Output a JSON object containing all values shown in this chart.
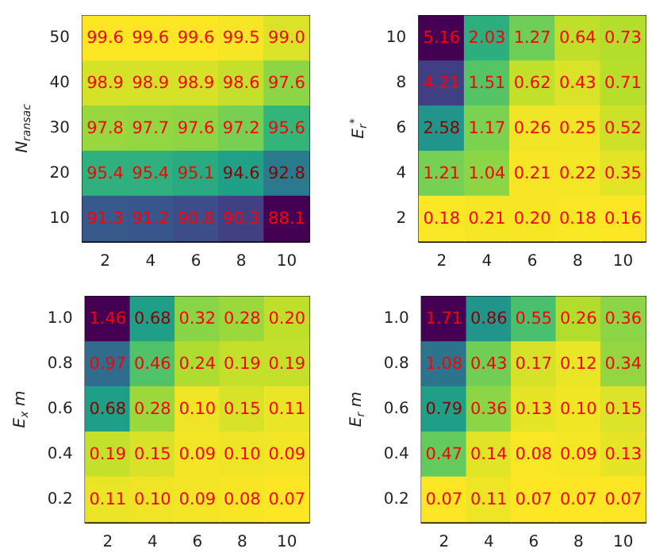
{
  "chart_data": [
    {
      "type": "heatmap",
      "ylabel": "N$_{ransac}$",
      "categories": [
        "2",
        "4",
        "6",
        "8",
        "10"
      ],
      "y_categories": [
        "50",
        "40",
        "30",
        "20",
        "10"
      ],
      "cells": [
        [
          99.6,
          99.6,
          99.6,
          99.5,
          99.0
        ],
        [
          98.9,
          98.9,
          98.9,
          98.6,
          97.6
        ],
        [
          97.8,
          97.7,
          97.6,
          97.2,
          95.6
        ],
        [
          95.4,
          95.4,
          95.1,
          94.6,
          92.8
        ],
        [
          91.3,
          91.2,
          90.8,
          90.3,
          88.1
        ]
      ],
      "cell_labels": [
        [
          "99.6",
          "99.6",
          "99.6",
          "99.5",
          "99.0"
        ],
        [
          "98.9",
          "98.9",
          "98.9",
          "98.6",
          "97.6"
        ],
        [
          "97.8",
          "97.7",
          "97.6",
          "97.2",
          "95.6"
        ],
        [
          "95.4",
          "95.4",
          "95.1",
          "94.6",
          "92.8"
        ],
        [
          "91.3",
          "91.2",
          "90.8",
          "90.3",
          "88.1"
        ]
      ]
    },
    {
      "type": "heatmap",
      "ylabel": "E$_{r}$$^{*}$",
      "categories": [
        "2",
        "4",
        "6",
        "8",
        "10"
      ],
      "y_categories": [
        "10",
        "8",
        "6",
        "4",
        "2"
      ],
      "cells": [
        [
          5.16,
          2.03,
          1.27,
          0.64,
          0.73
        ],
        [
          4.21,
          1.51,
          0.62,
          0.43,
          0.71
        ],
        [
          2.58,
          1.17,
          0.26,
          0.25,
          0.52
        ],
        [
          1.21,
          1.04,
          0.21,
          0.22,
          0.35
        ],
        [
          0.18,
          0.21,
          0.2,
          0.18,
          0.16
        ]
      ],
      "cell_labels": [
        [
          "5.16",
          "2.03",
          "1.27",
          "0.64",
          "0.73"
        ],
        [
          "4.21",
          "1.51",
          "0.62",
          "0.43",
          "0.71"
        ],
        [
          "2.58",
          "1.17",
          "0.26",
          "0.25",
          "0.52"
        ],
        [
          "1.21",
          "1.04",
          "0.21",
          "0.22",
          "0.35"
        ],
        [
          "0.18",
          "0.21",
          "0.20",
          "0.18",
          "0.16"
        ]
      ]
    },
    {
      "type": "heatmap",
      "ylabel": "E$_{x}$ m",
      "categories": [
        "2",
        "4",
        "6",
        "8",
        "10"
      ],
      "y_categories": [
        "1.0",
        "0.8",
        "0.6",
        "0.4",
        "0.2"
      ],
      "cells": [
        [
          1.46,
          0.68,
          0.32,
          0.28,
          0.2
        ],
        [
          0.97,
          0.46,
          0.24,
          0.19,
          0.19
        ],
        [
          0.68,
          0.28,
          0.1,
          0.15,
          0.11
        ],
        [
          0.19,
          0.15,
          0.09,
          0.1,
          0.09
        ],
        [
          0.11,
          0.1,
          0.09,
          0.08,
          0.07
        ]
      ],
      "cell_labels": [
        [
          "1.46",
          "0.68",
          "0.32",
          "0.28",
          "0.20"
        ],
        [
          "0.97",
          "0.46",
          "0.24",
          "0.19",
          "0.19"
        ],
        [
          "0.68",
          "0.28",
          "0.10",
          "0.15",
          "0.11"
        ],
        [
          "0.19",
          "0.15",
          "0.09",
          "0.10",
          "0.09"
        ],
        [
          "0.11",
          "0.10",
          "0.09",
          "0.08",
          "0.07"
        ]
      ]
    },
    {
      "type": "heatmap",
      "ylabel": "E$_{r}$ m",
      "categories": [
        "2",
        "4",
        "6",
        "8",
        "10"
      ],
      "y_categories": [
        "1.0",
        "0.8",
        "0.6",
        "0.4",
        "0.2"
      ],
      "cells": [
        [
          1.71,
          0.86,
          0.55,
          0.26,
          0.36
        ],
        [
          1.08,
          0.43,
          0.17,
          0.12,
          0.34
        ],
        [
          0.79,
          0.36,
          0.13,
          0.1,
          0.15
        ],
        [
          0.47,
          0.14,
          0.08,
          0.09,
          0.13
        ],
        [
          0.07,
          0.11,
          0.07,
          0.07,
          0.07
        ]
      ],
      "cell_labels": [
        [
          "1.71",
          "0.86",
          "0.55",
          "0.26",
          "0.36"
        ],
        [
          "1.08",
          "0.43",
          "0.17",
          "0.12",
          "0.34"
        ],
        [
          "0.79",
          "0.36",
          "0.13",
          "0.10",
          "0.15"
        ],
        [
          "0.47",
          "0.14",
          "0.08",
          "0.09",
          "0.13"
        ],
        [
          "0.07",
          "0.11",
          "0.07",
          "0.07",
          "0.07"
        ]
      ]
    }
  ]
}
